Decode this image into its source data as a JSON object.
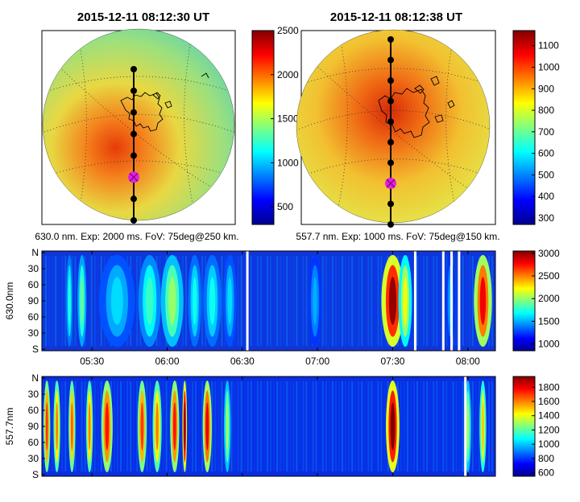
{
  "chart_data": [
    {
      "type": "heatmap",
      "subtype": "all-sky image",
      "title": "2015-12-11 08:12:30 UT",
      "caption": "630.0 nm. Exp: 2000 ms. FoV: 75deg@250 km.",
      "colorbar": {
        "min": 300,
        "max": 2500,
        "ticks": [
          500,
          1000,
          1500,
          2000,
          2500
        ]
      },
      "meridian_markers": 8,
      "highlight_marker_index": 5
    },
    {
      "type": "heatmap",
      "subtype": "all-sky image",
      "title": "2015-12-11 08:12:38 UT",
      "caption": "557.7 nm. Exp: 1000 ms. FoV: 75deg@150 km.",
      "colorbar": {
        "min": 270,
        "max": 1170,
        "ticks": [
          300,
          400,
          500,
          600,
          700,
          800,
          900,
          1000,
          1100
        ]
      },
      "meridian_markers": 10,
      "highlight_marker_index": 7
    },
    {
      "type": "heatmap",
      "subtype": "keogram",
      "ylabel": "630.0nm",
      "y_ticks": [
        "N",
        "30",
        "60",
        "90",
        "60",
        "30",
        "S"
      ],
      "x_ticks": [
        "05:30",
        "06:00",
        "06:30",
        "07:00",
        "07:30",
        "08:00"
      ],
      "x_tick_minutes": [
        330,
        360,
        390,
        420,
        450,
        480
      ],
      "x_range_minutes": [
        310,
        491
      ],
      "colorbar": {
        "min": 850,
        "max": 3050,
        "ticks": [
          1000,
          1500,
          2000,
          2500,
          3000
        ]
      },
      "bright_bands": [
        {
          "center": 321,
          "width": 1.5,
          "value": 1750
        },
        {
          "center": 326,
          "width": 2,
          "value": 1900
        },
        {
          "center": 340,
          "width": 8,
          "value": 1600
        },
        {
          "center": 353,
          "width": 5,
          "value": 1800
        },
        {
          "center": 362,
          "width": 5,
          "value": 2000
        },
        {
          "center": 371,
          "width": 3,
          "value": 1700
        },
        {
          "center": 378,
          "width": 4,
          "value": 1700
        },
        {
          "center": 385,
          "width": 3,
          "value": 1600
        },
        {
          "center": 419,
          "width": 3,
          "value": 1500
        },
        {
          "center": 450,
          "width": 5,
          "value": 3000
        },
        {
          "center": 455,
          "width": 3,
          "value": 2200
        },
        {
          "center": 473,
          "width": 2,
          "value": 1500
        },
        {
          "center": 486,
          "width": 4,
          "value": 2800
        }
      ],
      "data_gaps_minutes": [
        392,
        459,
        470.2,
        473.5,
        476.5
      ]
    },
    {
      "type": "heatmap",
      "subtype": "keogram",
      "ylabel": "557.7nm",
      "y_ticks": [
        "N",
        "30",
        "60",
        "90",
        "60",
        "30",
        "S"
      ],
      "x_ticks": [
        "05:30",
        "06:00",
        "06:30",
        "07:00",
        "07:30",
        "08:00"
      ],
      "x_tick_minutes": [
        330,
        360,
        390,
        420,
        450,
        480
      ],
      "x_range_minutes": [
        310,
        491
      ],
      "colorbar": {
        "min": 550,
        "max": 1950,
        "ticks": [
          600,
          800,
          1000,
          1200,
          1400,
          1600,
          1800
        ]
      },
      "bright_bands": [
        {
          "center": 312,
          "width": 1.5,
          "value": 1700
        },
        {
          "center": 316,
          "width": 1.5,
          "value": 1600
        },
        {
          "center": 322,
          "width": 1.5,
          "value": 1650
        },
        {
          "center": 329,
          "width": 1.5,
          "value": 1600
        },
        {
          "center": 336,
          "width": 2.5,
          "value": 1750
        },
        {
          "center": 350,
          "width": 2,
          "value": 1700
        },
        {
          "center": 356,
          "width": 2,
          "value": 1600
        },
        {
          "center": 363,
          "width": 2,
          "value": 1750
        },
        {
          "center": 367,
          "width": 1,
          "value": 1950
        },
        {
          "center": 376,
          "width": 2,
          "value": 1800
        },
        {
          "center": 384,
          "width": 1.5,
          "value": 1300
        },
        {
          "center": 450,
          "width": 3,
          "value": 1950
        },
        {
          "center": 480,
          "width": 1.5,
          "value": 1300
        },
        {
          "center": 486,
          "width": 1.5,
          "value": 1500
        }
      ],
      "data_gaps_minutes": [
        479
      ]
    }
  ]
}
